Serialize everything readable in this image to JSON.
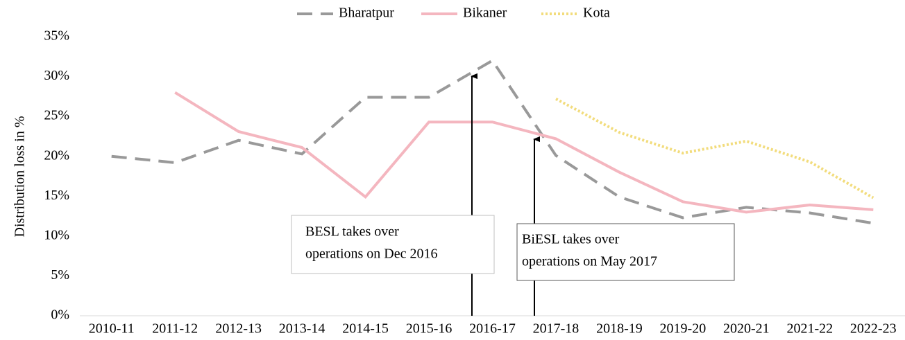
{
  "chart_data": {
    "type": "line",
    "y_axis_label": "Distribution loss in %",
    "categories": [
      "2010-11",
      "2011-12",
      "2012-13",
      "2013-14",
      "2014-15",
      "2015-16",
      "2016-17",
      "2017-18",
      "2018-19",
      "2019-20",
      "2020-21",
      "2021-22",
      "2022-23"
    ],
    "series": [
      {
        "name": "Bharatpur",
        "color": "#999999",
        "style": "dashed",
        "values": [
          20.0,
          19.2,
          22.0,
          20.3,
          27.4,
          27.4,
          32.0,
          20.1,
          14.9,
          12.3,
          13.6,
          12.9,
          11.6
        ]
      },
      {
        "name": "Bikaner",
        "color": "#f4b6bf",
        "style": "solid",
        "values": [
          null,
          28.0,
          23.1,
          21.1,
          14.9,
          24.3,
          24.3,
          22.2,
          18.0,
          14.3,
          13.0,
          13.9,
          13.3
        ]
      },
      {
        "name": "Kota",
        "color": "#f2dc7c",
        "style": "dotted",
        "values": [
          null,
          null,
          null,
          null,
          null,
          null,
          null,
          27.2,
          23.0,
          20.4,
          21.9,
          19.3,
          14.8
        ]
      }
    ],
    "ylim": [
      0,
      35
    ],
    "yticks": [
      {
        "value": 0,
        "label": "0%"
      },
      {
        "value": 5,
        "label": "5%"
      },
      {
        "value": 10,
        "label": "10%"
      },
      {
        "value": 15,
        "label": "15%"
      },
      {
        "value": 20,
        "label": "20%"
      },
      {
        "value": 25,
        "label": "25%"
      },
      {
        "value": 30,
        "label": "30%"
      },
      {
        "value": 35,
        "label": "35%"
      }
    ],
    "grid": false,
    "legend": "top",
    "annotations": [
      {
        "lines": [
          "BESL takes over",
          "operations on Dec 2016"
        ]
      },
      {
        "lines": [
          "BiESL takes over",
          "operations on May 2017"
        ]
      }
    ]
  }
}
